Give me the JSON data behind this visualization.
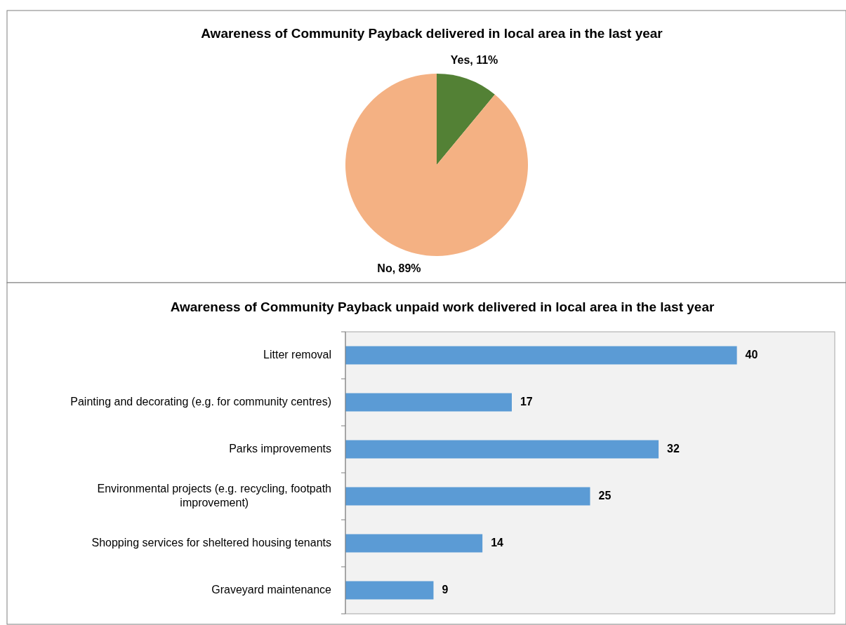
{
  "chart_data": [
    {
      "type": "pie",
      "title": "Awareness of Community Payback delivered in local area in the last year",
      "categories": [
        "Yes",
        "No"
      ],
      "values": [
        11,
        89
      ],
      "colors": [
        "#538135",
        "#f4b183"
      ],
      "value_labels": [
        "11%",
        "89%"
      ]
    },
    {
      "type": "bar",
      "orientation": "horizontal",
      "title": "Awareness of Community Payback unpaid work delivered in local area in the last year",
      "categories": [
        "Litter removal",
        "Painting and decorating (e.g. for community centres)",
        "Parks improvements",
        "Environmental projects (e.g. recycling, footpath improvement)",
        "Shopping services for sheltered housing tenants",
        "Graveyard maintenance"
      ],
      "values": [
        40,
        17,
        32,
        25,
        14,
        9
      ],
      "color": "#5b9bd5",
      "xlim": [
        0,
        50
      ],
      "data_labels": true,
      "tick_labels": "y"
    }
  ]
}
